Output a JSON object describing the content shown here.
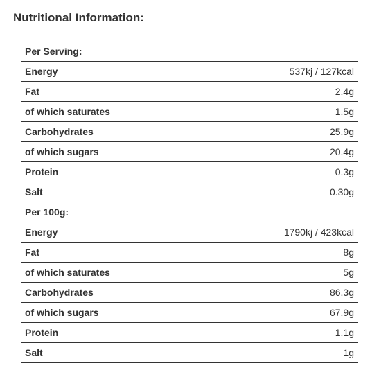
{
  "heading": "Nutritional Information:",
  "per_serving": {
    "title": "Per Serving:",
    "rows": [
      {
        "label": "Energy",
        "value": "537kj / 127kcal"
      },
      {
        "label": "Fat",
        "value": "2.4g"
      },
      {
        "label": "of which saturates",
        "value": "1.5g"
      },
      {
        "label": "Carbohydrates",
        "value": "25.9g"
      },
      {
        "label": "of which sugars",
        "value": "20.4g"
      },
      {
        "label": "Protein",
        "value": "0.3g"
      },
      {
        "label": "Salt",
        "value": "0.30g"
      }
    ]
  },
  "per_100g": {
    "title": "Per 100g:",
    "rows": [
      {
        "label": "Energy",
        "value": "1790kj / 423kcal"
      },
      {
        "label": "Fat",
        "value": "8g"
      },
      {
        "label": "of which saturates",
        "value": "5g"
      },
      {
        "label": "Carbohydrates",
        "value": "86.3g"
      },
      {
        "label": "of which sugars",
        "value": "67.9g"
      },
      {
        "label": "Protein",
        "value": "1.1g"
      },
      {
        "label": "Salt",
        "value": "1g"
      }
    ]
  }
}
